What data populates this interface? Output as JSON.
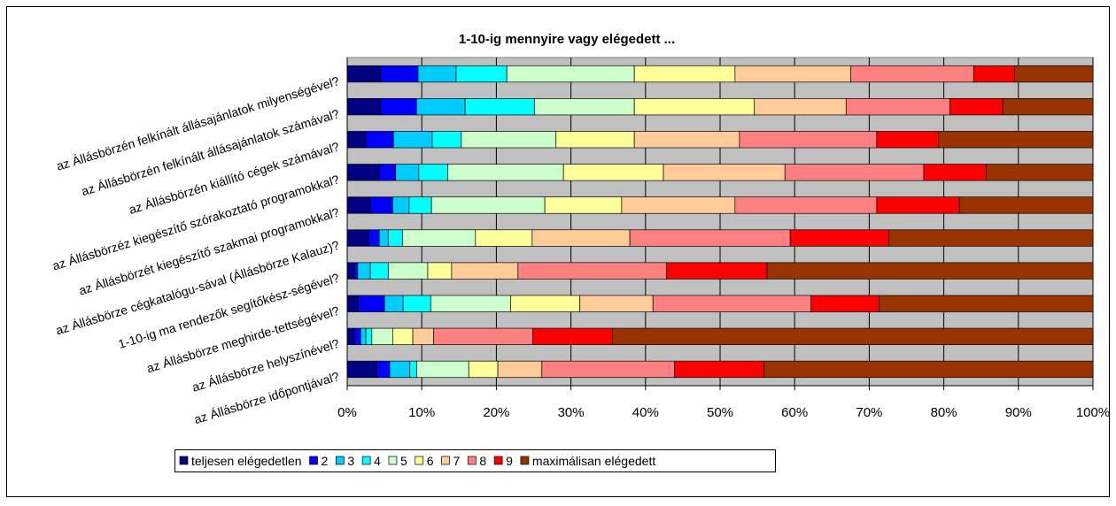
{
  "chart_data": {
    "type": "stacked_bar_horizontal_100",
    "title": "1-10-ig mennyire vagy elégedett ...",
    "categories": [
      "az Állásbörzén felkínált állásajánlatok milyenségével?",
      "az Állásbörzén felkínált állásajánlatok számával?",
      "az Állásbörzén kiállító cégek számával?",
      "az Állásbörzéz kiegészítő szórakoztató programokkal?",
      "az Állásbörzét kiegészítő szakmai programokkal?",
      "az Állásbörze cégkatalógu-sával (Állásbörze Kalauz)?",
      "1-10-ig ma rendezők segítőkész-ségével?",
      "az Állásbörze meghirde-tettségével?",
      "az Állásbörze helyszínével?",
      "az Állásbörze időpontjával?"
    ],
    "series": [
      {
        "name": "teljesen elégedetlen",
        "color": "#000080",
        "values": [
          4.5,
          4.5,
          2.5,
          4.3,
          3.1,
          2.9,
          1.0,
          1.5,
          1.0,
          4.0
        ]
      },
      {
        "name": "2",
        "color": "#0000ff",
        "values": [
          5.0,
          4.8,
          3.7,
          2.2,
          3.0,
          1.4,
          0.4,
          3.5,
          0.8,
          1.7
        ]
      },
      {
        "name": "3",
        "color": "#00ccff",
        "values": [
          5.1,
          6.5,
          5.2,
          3.1,
          2.2,
          1.2,
          1.7,
          2.5,
          0.7,
          2.7
        ]
      },
      {
        "name": "4",
        "color": "#00ffff",
        "values": [
          6.8,
          9.3,
          3.9,
          3.9,
          3.0,
          1.9,
          2.4,
          3.7,
          0.8,
          0.9
        ]
      },
      {
        "name": "5",
        "color": "#ccffcc",
        "values": [
          17.1,
          13.4,
          12.7,
          15.5,
          15.2,
          9.8,
          5.3,
          10.7,
          2.8,
          7.0
        ]
      },
      {
        "name": "6",
        "color": "#ffff99",
        "values": [
          13.5,
          16.1,
          10.5,
          13.4,
          10.3,
          7.6,
          3.2,
          9.3,
          2.7,
          3.9
        ]
      },
      {
        "name": "7",
        "color": "#ffcc99",
        "values": [
          15.5,
          12.3,
          14.1,
          16.3,
          15.2,
          13.1,
          8.9,
          9.8,
          2.8,
          5.9
        ]
      },
      {
        "name": "8",
        "color": "#ff8080",
        "values": [
          16.5,
          13.9,
          18.4,
          18.6,
          19.0,
          21.5,
          19.9,
          21.2,
          13.3,
          17.8
        ]
      },
      {
        "name": "9",
        "color": "#ff0000",
        "values": [
          5.5,
          7.1,
          8.3,
          8.4,
          11.1,
          13.2,
          13.5,
          9.1,
          10.7,
          12.0
        ]
      },
      {
        "name": "maximálisan elégedett",
        "color": "#993300",
        "values": [
          10.5,
          12.1,
          20.7,
          14.3,
          17.9,
          27.4,
          43.7,
          28.7,
          64.4,
          44.1
        ]
      }
    ],
    "xlim": [
      0,
      100
    ],
    "xticks": [
      {
        "value": 0,
        "label": "0%"
      },
      {
        "value": 10,
        "label": "10%"
      },
      {
        "value": 20,
        "label": "20%"
      },
      {
        "value": 30,
        "label": "30%"
      },
      {
        "value": 40,
        "label": "40%"
      },
      {
        "value": 50,
        "label": "50%"
      },
      {
        "value": 60,
        "label": "60%"
      },
      {
        "value": 70,
        "label": "70%"
      },
      {
        "value": 80,
        "label": "80%"
      },
      {
        "value": 90,
        "label": "90%"
      },
      {
        "value": 100,
        "label": "100%"
      }
    ],
    "grid": true,
    "legend": "bottom"
  }
}
